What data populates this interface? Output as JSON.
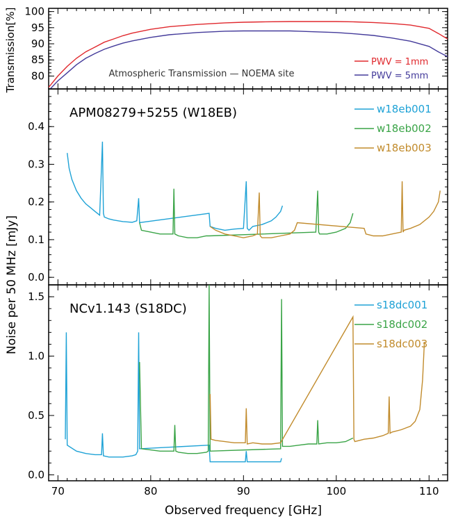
{
  "chart_data": [
    {
      "type": "line",
      "title": "Atmospheric Transmission — NOEMA site",
      "xlim": [
        69,
        112
      ],
      "ylim": [
        76,
        101
      ],
      "ylabel": "Transmission[%]",
      "yticks": [
        80,
        85,
        90,
        95,
        100
      ],
      "series": [
        {
          "name": "PWV = 1mm",
          "color": "#e0282d",
          "x": [
            69,
            70,
            71,
            72,
            73,
            74,
            75,
            76,
            77,
            78,
            80,
            82,
            85,
            88,
            90,
            92,
            95,
            96,
            97,
            100,
            102,
            104,
            106,
            108,
            110,
            111,
            112
          ],
          "y": [
            76.5,
            80,
            83,
            85.5,
            87.5,
            89,
            90.5,
            91.5,
            92.5,
            93.3,
            94.5,
            95.3,
            96,
            96.5,
            96.7,
            96.8,
            96.9,
            96.9,
            96.9,
            96.9,
            96.8,
            96.6,
            96.3,
            95.8,
            94.8,
            93.2,
            91.5
          ]
        },
        {
          "name": "PWV = 5mm",
          "color": "#433a9a",
          "x": [
            69,
            70,
            71,
            72,
            73,
            74,
            75,
            76,
            77,
            78,
            80,
            82,
            85,
            88,
            90,
            92,
            95,
            96,
            97,
            100,
            102,
            104,
            106,
            108,
            110,
            111,
            112
          ],
          "y": [
            75.5,
            78.5,
            81,
            83.5,
            85.5,
            87,
            88.3,
            89.3,
            90.2,
            90.9,
            92,
            92.8,
            93.5,
            93.9,
            94,
            94,
            94,
            93.9,
            93.8,
            93.5,
            93.1,
            92.6,
            91.8,
            90.8,
            89.2,
            87.5,
            86
          ]
        }
      ],
      "legend_position": "bottom-right"
    },
    {
      "type": "line",
      "title": "APM08279+5255 (W18EB)",
      "xlim": [
        69,
        112
      ],
      "ylim": [
        -0.02,
        0.5
      ],
      "yticks": [
        0.0,
        0.1,
        0.2,
        0.3,
        0.4
      ],
      "yticklabels": [
        "0.0",
        "0.1",
        "0.2",
        "0.3",
        "0.4"
      ],
      "series": [
        {
          "name": "w18eb001",
          "color": "#1ea2d6",
          "x": [
            71.0,
            71.2,
            71.5,
            72.0,
            72.5,
            73.0,
            73.5,
            74.0,
            74.5,
            74.8,
            74.9,
            75.0,
            75.5,
            76.0,
            76.5,
            77.0,
            77.5,
            78.0,
            78.5,
            78.7,
            78.8,
            86.3,
            86.4,
            87.0,
            88.0,
            89.0,
            90.0,
            90.3,
            90.4,
            90.6,
            91.0,
            92.0,
            93.0,
            93.5,
            94.0,
            94.2
          ],
          "y": [
            0.33,
            0.29,
            0.26,
            0.23,
            0.21,
            0.195,
            0.185,
            0.175,
            0.165,
            0.36,
            0.17,
            0.16,
            0.155,
            0.152,
            0.15,
            0.148,
            0.147,
            0.146,
            0.15,
            0.21,
            0.145,
            0.17,
            0.135,
            0.13,
            0.125,
            0.128,
            0.13,
            0.255,
            0.13,
            0.125,
            0.135,
            0.14,
            0.15,
            0.16,
            0.175,
            0.19
          ]
        },
        {
          "name": "w18eb002",
          "color": "#3aa447",
          "x": [
            78.8,
            79.0,
            80.0,
            81.0,
            82.0,
            82.4,
            82.5,
            82.6,
            83.0,
            84.0,
            85.0,
            86.0,
            86.3,
            97.8,
            98.0,
            98.1,
            98.2,
            99.0,
            100.0,
            101.0,
            101.5,
            101.8
          ],
          "y": [
            0.145,
            0.125,
            0.12,
            0.115,
            0.115,
            0.115,
            0.235,
            0.115,
            0.11,
            0.105,
            0.105,
            0.11,
            0.11,
            0.12,
            0.23,
            0.12,
            0.115,
            0.115,
            0.12,
            0.13,
            0.145,
            0.17
          ]
        },
        {
          "name": "w18eb003",
          "color": "#c18b2c",
          "x": [
            86.4,
            87.0,
            88.0,
            89.0,
            90.0,
            91.0,
            91.5,
            91.7,
            91.8,
            92.0,
            93.0,
            94.0,
            95.0,
            95.5,
            95.8,
            103.0,
            103.2,
            104.0,
            105.0,
            106.0,
            107.0,
            107.1,
            107.2,
            107.3,
            108.0,
            109.0,
            110.0,
            110.5,
            111.0,
            111.2
          ],
          "y": [
            0.135,
            0.125,
            0.115,
            0.11,
            0.105,
            0.11,
            0.115,
            0.225,
            0.11,
            0.105,
            0.105,
            0.11,
            0.115,
            0.125,
            0.145,
            0.13,
            0.115,
            0.11,
            0.11,
            0.115,
            0.12,
            0.255,
            0.12,
            0.125,
            0.13,
            0.14,
            0.16,
            0.175,
            0.2,
            0.23
          ]
        }
      ],
      "legend_position": "top-right"
    },
    {
      "type": "line",
      "title": "NCv1.143 (S18DC)",
      "xlim": [
        69,
        112
      ],
      "ylim": [
        -0.05,
        1.6
      ],
      "yticks": [
        0.0,
        0.5,
        1.0,
        1.5
      ],
      "yticklabels": [
        "0.0",
        "0.5",
        "1.0",
        "1.5"
      ],
      "series": [
        {
          "name": "s18dc001",
          "color": "#1ea2d6",
          "x": [
            70.8,
            70.9,
            71.0,
            72.0,
            73.0,
            74.0,
            74.7,
            74.8,
            74.9,
            75.5,
            76.0,
            77.0,
            78.0,
            78.4,
            78.6,
            78.7,
            78.8,
            86.3,
            86.4,
            87.0,
            88.0,
            89.0,
            90.0,
            90.2,
            90.3,
            90.4,
            91.0,
            92.0,
            93.0,
            94.0,
            94.1
          ],
          "y": [
            0.3,
            1.2,
            0.25,
            0.2,
            0.18,
            0.17,
            0.17,
            0.35,
            0.16,
            0.15,
            0.15,
            0.15,
            0.16,
            0.17,
            0.2,
            1.2,
            0.22,
            0.25,
            0.11,
            0.11,
            0.11,
            0.11,
            0.11,
            0.11,
            0.2,
            0.11,
            0.11,
            0.11,
            0.11,
            0.11,
            0.14
          ]
        },
        {
          "name": "s18dc002",
          "color": "#3aa447",
          "x": [
            78.8,
            79.0,
            80.0,
            81.0,
            82.0,
            82.5,
            82.6,
            82.7,
            83.0,
            84.0,
            85.0,
            86.0,
            86.2,
            86.3,
            86.4,
            94.0,
            94.1,
            94.2,
            95.0,
            96.0,
            97.0,
            97.9,
            98.0,
            98.1,
            99.0,
            100.0,
            101.0,
            101.8
          ],
          "y": [
            0.95,
            0.22,
            0.21,
            0.2,
            0.2,
            0.2,
            0.42,
            0.2,
            0.19,
            0.18,
            0.18,
            0.19,
            0.2,
            1.6,
            0.2,
            0.22,
            1.48,
            0.24,
            0.24,
            0.25,
            0.26,
            0.26,
            0.46,
            0.26,
            0.27,
            0.27,
            0.28,
            0.31
          ]
        },
        {
          "name": "s18dc003",
          "color": "#c18b2c",
          "x": [
            86.4,
            86.5,
            87.0,
            88.0,
            89.0,
            90.0,
            90.2,
            90.3,
            90.4,
            91.0,
            92.0,
            93.0,
            94.0,
            101.8,
            101.9,
            102.0,
            103.0,
            104.0,
            105.0,
            105.6,
            105.7,
            105.8,
            106.0,
            107.0,
            108.0,
            108.5,
            109.0,
            109.3,
            109.5
          ],
          "y": [
            0.68,
            0.3,
            0.29,
            0.28,
            0.27,
            0.27,
            0.27,
            0.56,
            0.26,
            0.27,
            0.26,
            0.26,
            0.27,
            1.33,
            0.3,
            0.28,
            0.3,
            0.31,
            0.33,
            0.35,
            0.66,
            0.35,
            0.36,
            0.38,
            0.41,
            0.45,
            0.55,
            0.8,
            1.12
          ]
        }
      ],
      "legend_position": "top-right"
    }
  ],
  "shared_axis": {
    "xlabel": "Observed frequency [GHz]",
    "xticks": [
      70,
      80,
      90,
      100,
      110
    ],
    "ylabel": "Noise per 50 MHz [mJy]"
  }
}
